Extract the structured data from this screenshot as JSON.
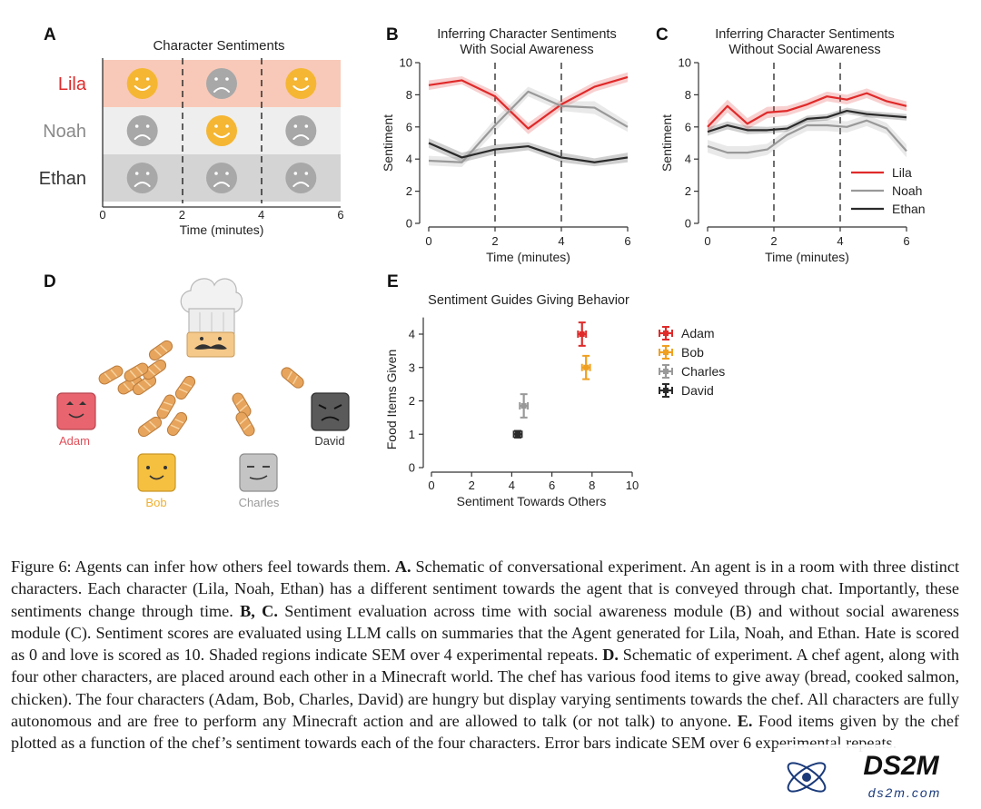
{
  "panels": {
    "A": {
      "letter": "A",
      "title": "Character Sentiments",
      "rows": [
        {
          "name": "Lila",
          "color": "#e02a2a",
          "bg": "#f8c9b8",
          "faces": [
            "happy",
            "sad",
            "happy"
          ]
        },
        {
          "name": "Noah",
          "color": "#8a8a8a",
          "bg": "#eeeeee",
          "faces": [
            "sad",
            "happy",
            "sad"
          ]
        },
        {
          "name": "Ethan",
          "color": "#333333",
          "bg": "#d4d4d4",
          "faces": [
            "sad",
            "sad",
            "sad"
          ]
        }
      ],
      "x_ticks": [
        "0",
        "2",
        "4",
        "6"
      ],
      "xlabel": "Time (minutes)"
    },
    "D": {
      "letter": "D",
      "characters": [
        {
          "name": "Adam",
          "color": "#e0505a"
        },
        {
          "name": "Bob",
          "color": "#f0b030"
        },
        {
          "name": "Charles",
          "color": "#9a9a9a"
        },
        {
          "name": "David",
          "color": "#333333"
        }
      ]
    }
  },
  "chart_data": [
    {
      "panel": "B",
      "type": "line",
      "title": "Inferring Character Sentiments\nWith Social Awareness",
      "xlabel": "Time (minutes)",
      "ylabel": "Sentiment",
      "xlim": [
        0,
        6
      ],
      "ylim": [
        0,
        10
      ],
      "x_ticks": [
        0,
        2,
        4,
        6
      ],
      "y_ticks": [
        0,
        2,
        4,
        6,
        8,
        10
      ],
      "vlines": [
        2,
        4
      ],
      "x": [
        0,
        1,
        2,
        3,
        4,
        5,
        6
      ],
      "series": [
        {
          "name": "Lila",
          "color": "#e02a2a",
          "values": [
            8.6,
            8.9,
            7.9,
            5.9,
            7.4,
            8.5,
            9.1
          ],
          "sem": [
            0.3,
            0.25,
            0.3,
            0.35,
            0.3,
            0.3,
            0.3
          ]
        },
        {
          "name": "Noah",
          "color": "#999999",
          "values": [
            3.9,
            3.8,
            6.1,
            8.2,
            7.3,
            7.2,
            6.0
          ],
          "sem": [
            0.3,
            0.3,
            0.4,
            0.3,
            0.3,
            0.4,
            0.3
          ]
        },
        {
          "name": "Ethan",
          "color": "#2a2a2a",
          "values": [
            5.0,
            4.1,
            4.6,
            4.8,
            4.1,
            3.8,
            4.1
          ],
          "sem": [
            0.3,
            0.3,
            0.3,
            0.25,
            0.3,
            0.25,
            0.3
          ]
        }
      ]
    },
    {
      "panel": "C",
      "type": "line",
      "title": "Inferring Character Sentiments\nWithout Social Awareness",
      "xlabel": "Time (minutes)",
      "ylabel": "Sentiment",
      "xlim": [
        0,
        6
      ],
      "ylim": [
        0,
        10
      ],
      "x_ticks": [
        0,
        2,
        4,
        6
      ],
      "y_ticks": [
        0,
        2,
        4,
        6,
        8,
        10
      ],
      "vlines": [
        2,
        4
      ],
      "legend": "bottom-right",
      "x": [
        0,
        0.6,
        1.2,
        1.8,
        2.4,
        3.0,
        3.6,
        4.2,
        4.8,
        5.4,
        6.0
      ],
      "series": [
        {
          "name": "Lila",
          "color": "#e02a2a",
          "values": [
            6.0,
            7.3,
            6.2,
            6.9,
            7.0,
            7.4,
            7.9,
            7.7,
            8.1,
            7.6,
            7.3
          ],
          "sem": [
            0.4,
            0.4,
            0.35,
            0.35,
            0.3,
            0.3,
            0.3,
            0.3,
            0.3,
            0.3,
            0.3
          ]
        },
        {
          "name": "Noah",
          "color": "#999999",
          "values": [
            4.8,
            4.4,
            4.4,
            4.6,
            5.5,
            6.1,
            6.1,
            6.0,
            6.4,
            5.9,
            4.5
          ],
          "sem": [
            0.4,
            0.4,
            0.4,
            0.35,
            0.35,
            0.35,
            0.35,
            0.35,
            0.35,
            0.35,
            0.4
          ]
        },
        {
          "name": "Ethan",
          "color": "#2a2a2a",
          "values": [
            5.7,
            6.1,
            5.8,
            5.8,
            5.9,
            6.5,
            6.6,
            7.0,
            6.8,
            6.7,
            6.6
          ],
          "sem": [
            0.25,
            0.25,
            0.25,
            0.2,
            0.2,
            0.2,
            0.2,
            0.2,
            0.2,
            0.2,
            0.2
          ]
        }
      ]
    },
    {
      "panel": "E",
      "type": "scatter",
      "title": "Sentiment Guides Giving Behavior",
      "xlabel": "Sentiment Towards Others",
      "ylabel": "Food Items Given",
      "xlim": [
        0,
        10
      ],
      "ylim": [
        0,
        4.5
      ],
      "x_ticks": [
        0,
        2,
        4,
        6,
        8,
        10
      ],
      "y_ticks": [
        0,
        1,
        2,
        3,
        4
      ],
      "legend": "right",
      "points": [
        {
          "name": "Adam",
          "color": "#e02a2a",
          "x": 7.5,
          "y": 4.0,
          "xerr": 0.2,
          "yerr": 0.35
        },
        {
          "name": "Bob",
          "color": "#f0a020",
          "x": 7.7,
          "y": 3.0,
          "xerr": 0.2,
          "yerr": 0.35
        },
        {
          "name": "Charles",
          "color": "#999999",
          "x": 4.6,
          "y": 1.85,
          "xerr": 0.2,
          "yerr": 0.35
        },
        {
          "name": "David",
          "color": "#2a2a2a",
          "x": 4.3,
          "y": 1.0,
          "xerr": 0.2,
          "yerr": 0.1
        }
      ]
    }
  ],
  "caption": {
    "s1": "Figure 6: Agents can infer how others feel towards them. ",
    "b1": "A.",
    "s2": " Schematic of conversational experiment. An agent is in a room with three distinct characters. Each character (Lila, Noah, Ethan) has a different sentiment towards the agent that is conveyed through chat. Importantly, these sentiments change through time. ",
    "b2": "B, C.",
    "s3": " Sentiment evaluation across time with social awareness module (B) and without social awareness module (C). Sentiment scores are evaluated using LLM calls on summaries that the Agent generated for Lila, Noah, and Ethan. Hate is scored as 0 and love is scored as 10. Shaded regions indicate SEM over 4 experimental repeats. ",
    "b3": "D.",
    "s4": " Schematic of experiment. A chef agent, along with four other characters, are placed around each other in a Minecraft world. The chef has various food items to give away (bread, cooked salmon, chicken). The four characters (Adam, Bob, Charles, David) are hungry but display varying sentiments towards the chef. All characters are fully autonomous and are free to perform any Minecraft action and are allowed to talk (or not talk) to anyone. ",
    "b4": "E.",
    "s5": " Food items given by the chef plotted as a function of the chef’s sentiment towards each of the four characters. Error bars indicate SEM over 6 experimental repeats."
  },
  "watermark": {
    "logo_text": "DS2M",
    "url_text": "ds2m.com"
  }
}
